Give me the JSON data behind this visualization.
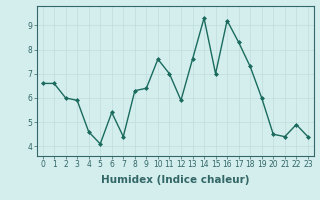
{
  "x": [
    0,
    1,
    2,
    3,
    4,
    5,
    6,
    7,
    8,
    9,
    10,
    11,
    12,
    13,
    14,
    15,
    16,
    17,
    18,
    19,
    20,
    21,
    22,
    23
  ],
  "y": [
    6.6,
    6.6,
    6.0,
    5.9,
    4.6,
    4.1,
    5.4,
    4.4,
    6.3,
    6.4,
    7.6,
    7.0,
    5.9,
    7.6,
    9.3,
    7.0,
    9.2,
    8.3,
    7.3,
    6.0,
    4.5,
    4.4,
    4.9,
    4.4
  ],
  "line_color": "#1a6b5e",
  "marker": "D",
  "marker_size": 2.0,
  "bg_color": "#d4eeee",
  "grid_color": "#c0dcdc",
  "xlabel": "Humidex (Indice chaleur)",
  "xlim": [
    -0.5,
    23.5
  ],
  "ylim": [
    3.6,
    9.8
  ],
  "yticks": [
    4,
    5,
    6,
    7,
    8,
    9
  ],
  "xticks": [
    0,
    1,
    2,
    3,
    4,
    5,
    6,
    7,
    8,
    9,
    10,
    11,
    12,
    13,
    14,
    15,
    16,
    17,
    18,
    19,
    20,
    21,
    22,
    23
  ],
  "xtick_labels": [
    "0",
    "1",
    "2",
    "3",
    "4",
    "5",
    "6",
    "7",
    "8",
    "9",
    "10",
    "11",
    "12",
    "13",
    "14",
    "15",
    "16",
    "17",
    "18",
    "19",
    "20",
    "21",
    "22",
    "23"
  ],
  "tick_fontsize": 5.5,
  "xlabel_fontsize": 7.5,
  "line_width": 1.0,
  "spine_color": "#336666"
}
